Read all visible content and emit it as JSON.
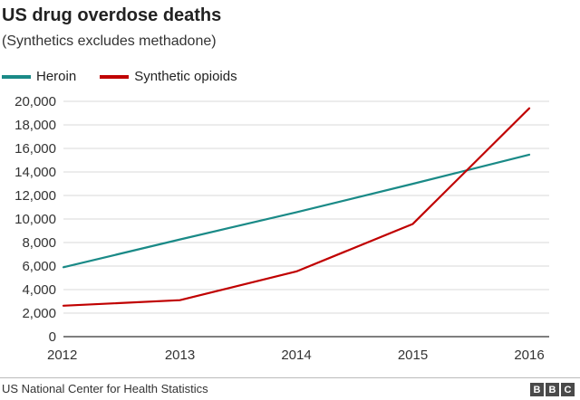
{
  "colors": {
    "heroin": "#1a8a87",
    "synthetic": "#c00000"
  },
  "source": "US National Center for Health Statistics",
  "logo": "BBC",
  "chart_data": {
    "type": "line",
    "title": "US drug overdose deaths",
    "subtitle": "(Synthetics excludes methadone)",
    "x": [
      "2012",
      "2013",
      "2014",
      "2015",
      "2016"
    ],
    "yticks": [
      "0",
      "2,000",
      "4,000",
      "6,000",
      "8,000",
      "10,000",
      "12,000",
      "14,000",
      "16,000",
      "18,000",
      "20,000"
    ],
    "ylim": [
      0,
      20000
    ],
    "grid": true,
    "legend": "top-left",
    "series": [
      {
        "name": "Heroin",
        "color": "#1a8a87",
        "values": [
          5900,
          8260,
          10570,
          12990,
          15470
        ]
      },
      {
        "name": "Synthetic opioids",
        "color": "#c00000",
        "values": [
          2630,
          3100,
          5540,
          9580,
          19410
        ]
      }
    ]
  }
}
